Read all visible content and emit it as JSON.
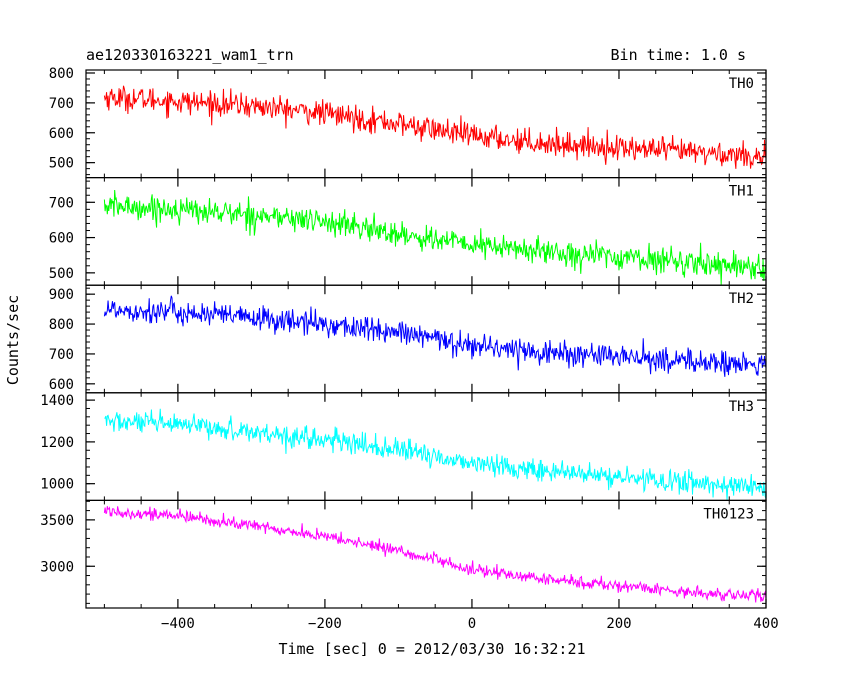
{
  "header": {
    "title": "ae120330163221_wam1_trn",
    "bin_time": "Bin time: 1.0 s"
  },
  "chart_data": {
    "type": "line",
    "xlabel": "Time [sec] 0 = 2012/03/30 16:32:21",
    "ylabel": "Counts/sec",
    "xlim": [
      -525,
      400
    ],
    "x_ticks": [
      -400,
      -200,
      0,
      200,
      400
    ],
    "x_range": [
      -500,
      400
    ],
    "grid": false,
    "panels": [
      {
        "name": "TH0",
        "color": "#ff0000",
        "ylim": [
          450,
          810
        ],
        "y_ticks": [
          500,
          600,
          700,
          800
        ],
        "start": 720,
        "end": 520,
        "noise": 38,
        "trend": [
          [
            -500,
            720
          ],
          [
            -400,
            705
          ],
          [
            -300,
            690
          ],
          [
            -200,
            665
          ],
          [
            -100,
            630
          ],
          [
            0,
            590
          ],
          [
            100,
            565
          ],
          [
            200,
            550
          ],
          [
            300,
            535
          ],
          [
            400,
            520
          ]
        ]
      },
      {
        "name": "TH1",
        "color": "#00ff00",
        "ylim": [
          465,
          770
        ],
        "y_ticks": [
          500,
          600,
          700
        ],
        "start": 690,
        "end": 515,
        "noise": 33,
        "trend": [
          [
            -500,
            690
          ],
          [
            -400,
            680
          ],
          [
            -300,
            665
          ],
          [
            -200,
            645
          ],
          [
            -100,
            610
          ],
          [
            0,
            580
          ],
          [
            100,
            560
          ],
          [
            200,
            545
          ],
          [
            300,
            530
          ],
          [
            400,
            515
          ]
        ]
      },
      {
        "name": "TH2",
        "color": "#0000ff",
        "ylim": [
          570,
          930
        ],
        "y_ticks": [
          600,
          700,
          800,
          900
        ],
        "start": 850,
        "end": 660,
        "noise": 38,
        "trend": [
          [
            -500,
            850
          ],
          [
            -400,
            840
          ],
          [
            -300,
            820
          ],
          [
            -200,
            800
          ],
          [
            -100,
            770
          ],
          [
            0,
            730
          ],
          [
            100,
            705
          ],
          [
            200,
            690
          ],
          [
            300,
            675
          ],
          [
            400,
            660
          ]
        ]
      },
      {
        "name": "TH3",
        "color": "#00ffff",
        "ylim": [
          920,
          1435
        ],
        "y_ticks": [
          1000,
          1200,
          1400
        ],
        "start": 1300,
        "end": 980,
        "noise": 48,
        "trend": [
          [
            -500,
            1300
          ],
          [
            -400,
            1280
          ],
          [
            -300,
            1250
          ],
          [
            -200,
            1210
          ],
          [
            -100,
            1160
          ],
          [
            0,
            1100
          ],
          [
            100,
            1060
          ],
          [
            200,
            1030
          ],
          [
            300,
            1005
          ],
          [
            400,
            980
          ]
        ]
      },
      {
        "name": "TH0123",
        "color": "#ff00ff",
        "ylim": [
          2550,
          3710
        ],
        "y_ticks": [
          3000,
          3500
        ],
        "start": 3600,
        "end": 2670,
        "noise": 60,
        "trend": [
          [
            -500,
            3600
          ],
          [
            -400,
            3540
          ],
          [
            -300,
            3440
          ],
          [
            -200,
            3320
          ],
          [
            -100,
            3170
          ],
          [
            0,
            2960
          ],
          [
            100,
            2860
          ],
          [
            200,
            2790
          ],
          [
            300,
            2720
          ],
          [
            400,
            2670
          ]
        ]
      }
    ]
  }
}
